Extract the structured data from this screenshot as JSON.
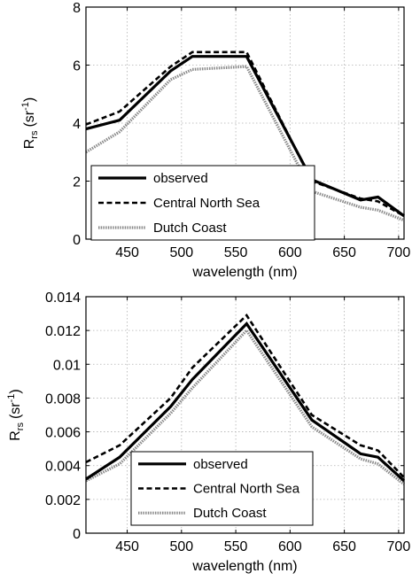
{
  "chart_data": [
    {
      "type": "line",
      "xlabel": "wavelength (nm)",
      "ylabel_main": "R",
      "ylabel_sub": "rs",
      "ylabel_unit": "(sr",
      "ylabel_sup": "-1",
      "ylabel_close": ")",
      "xlim": [
        412,
        705
      ],
      "ylim": [
        0,
        8
      ],
      "xticks": [
        450,
        500,
        550,
        600,
        650,
        700
      ],
      "yticks": [
        0,
        2,
        4,
        6,
        8
      ],
      "grid": true,
      "legend_position": "bottom-left",
      "series": [
        {
          "name": "observed",
          "style": "solid",
          "x": [
            412,
            443,
            490,
            510,
            560,
            620,
            665,
            681,
            705
          ],
          "y": [
            3.8,
            4.1,
            5.8,
            6.3,
            6.3,
            2.05,
            1.35,
            1.45,
            0.8
          ]
        },
        {
          "name": "Central North Sea",
          "style": "dashed",
          "x": [
            412,
            443,
            490,
            510,
            560,
            620,
            665,
            681,
            705
          ],
          "y": [
            3.95,
            4.4,
            5.95,
            6.45,
            6.45,
            2.0,
            1.4,
            1.3,
            0.8
          ]
        },
        {
          "name": "Dutch Coast",
          "style": "dotted",
          "x": [
            412,
            443,
            490,
            510,
            560,
            620,
            665,
            681,
            705
          ],
          "y": [
            3.0,
            3.7,
            5.5,
            5.85,
            5.95,
            1.65,
            1.1,
            1.0,
            0.65
          ]
        }
      ]
    },
    {
      "type": "line",
      "xlabel": "wavelength (nm)",
      "ylabel_main": "R",
      "ylabel_sub": "rs",
      "ylabel_unit": "(sr",
      "ylabel_sup": "-1",
      "ylabel_close": ")",
      "xlim": [
        412,
        705
      ],
      "ylim": [
        0,
        0.014
      ],
      "xticks": [
        450,
        500,
        550,
        600,
        650,
        700
      ],
      "yticks": [
        0,
        0.002,
        0.004,
        0.006,
        0.008,
        0.01,
        0.012,
        0.014
      ],
      "ytick_labels": [
        "0",
        "0.002",
        "0.004",
        "0.006",
        "0.008",
        "0.01",
        "0.012",
        "0.014"
      ],
      "grid": true,
      "legend_position": "bottom-center",
      "series": [
        {
          "name": "observed",
          "style": "solid",
          "x": [
            412,
            443,
            490,
            510,
            560,
            620,
            665,
            681,
            705
          ],
          "y": [
            0.0032,
            0.0045,
            0.0075,
            0.0091,
            0.0124,
            0.0067,
            0.0047,
            0.0045,
            0.0031
          ]
        },
        {
          "name": "Central North Sea",
          "style": "dashed",
          "x": [
            412,
            443,
            490,
            510,
            560,
            620,
            665,
            681,
            705
          ],
          "y": [
            0.0042,
            0.0052,
            0.008,
            0.0098,
            0.0129,
            0.007,
            0.0052,
            0.0049,
            0.0033
          ]
        },
        {
          "name": "Dutch Coast",
          "style": "dotted",
          "x": [
            412,
            443,
            490,
            510,
            560,
            620,
            665,
            681,
            705
          ],
          "y": [
            0.0031,
            0.0041,
            0.0071,
            0.0086,
            0.012,
            0.0063,
            0.0044,
            0.0041,
            0.0029
          ]
        }
      ]
    }
  ]
}
